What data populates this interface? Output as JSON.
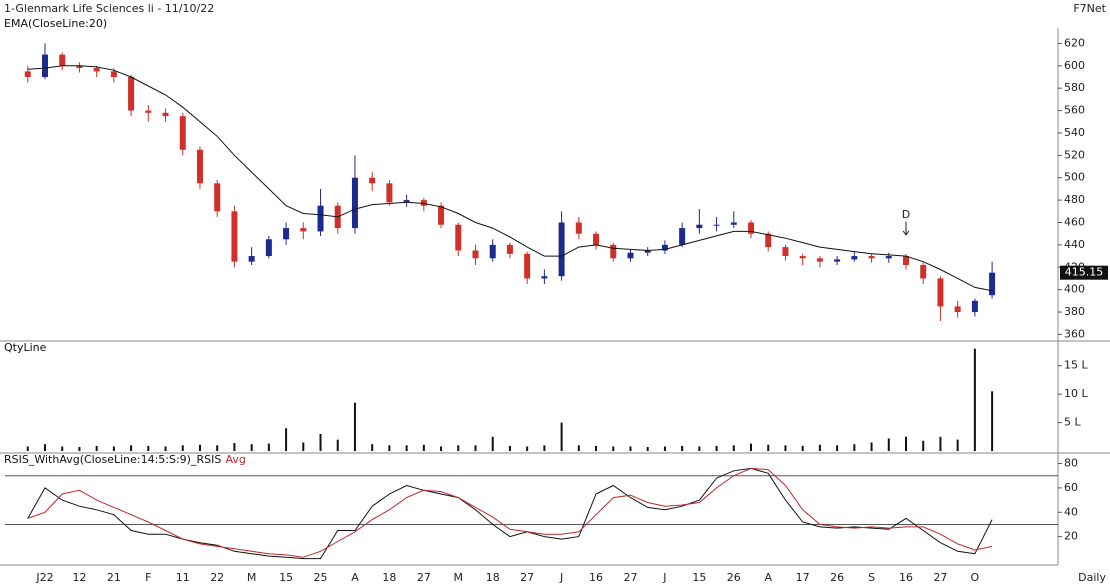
{
  "header": {
    "source": "F7Net",
    "period": "Daily"
  },
  "chart_data": [
    {
      "type": "candlestick",
      "title": "1-Glenmark Life Sciences li - 11/10/22",
      "up_color": "#1f2a8f",
      "down_color": "#d0302a",
      "open": [
        595,
        590,
        610,
        600,
        598,
        595,
        590,
        560,
        558,
        555,
        525,
        495,
        470,
        425,
        430,
        445,
        455,
        452,
        475,
        455,
        500,
        495,
        478,
        480,
        475,
        458,
        435,
        428,
        440,
        432,
        410,
        412,
        460,
        450,
        440,
        428,
        433,
        435,
        440,
        455,
        458,
        458,
        460,
        450,
        438,
        430,
        428,
        425,
        427,
        430,
        428,
        430,
        422,
        410,
        385,
        380,
        395
      ],
      "high": [
        600,
        620,
        612,
        603,
        600,
        598,
        592,
        565,
        562,
        558,
        528,
        498,
        475,
        438,
        448,
        460,
        460,
        490,
        478,
        520,
        505,
        498,
        485,
        482,
        478,
        460,
        440,
        445,
        442,
        434,
        418,
        470,
        465,
        452,
        442,
        436,
        438,
        444,
        460,
        472,
        465,
        470,
        462,
        452,
        440,
        432,
        430,
        430,
        434,
        432,
        433,
        432,
        424,
        412,
        390,
        392,
        425
      ],
      "low": [
        585,
        588,
        596,
        594,
        590,
        585,
        555,
        550,
        550,
        520,
        490,
        465,
        420,
        422,
        428,
        440,
        445,
        448,
        450,
        450,
        488,
        475,
        474,
        470,
        455,
        430,
        422,
        425,
        428,
        405,
        405,
        408,
        445,
        436,
        425,
        425,
        430,
        432,
        438,
        450,
        452,
        455,
        446,
        434,
        426,
        422,
        420,
        422,
        425,
        424,
        424,
        418,
        405,
        372,
        375,
        376,
        392
      ],
      "close": [
        590,
        610,
        600,
        598,
        595,
        590,
        560,
        558,
        555,
        525,
        495,
        470,
        425,
        430,
        445,
        455,
        452,
        475,
        455,
        500,
        495,
        478,
        480,
        475,
        458,
        435,
        428,
        440,
        432,
        410,
        412,
        460,
        450,
        440,
        428,
        433,
        435,
        440,
        455,
        458,
        458,
        460,
        450,
        438,
        430,
        428,
        425,
        427,
        430,
        428,
        430,
        422,
        410,
        385,
        380,
        390,
        415.15
      ],
      "overlays": [
        {
          "name": "EMA(CloseLine:20)",
          "color": "#111111",
          "values": [
            597,
            598,
            600,
            600,
            599,
            596,
            590,
            582,
            574,
            563,
            550,
            537,
            520,
            505,
            490,
            475,
            468,
            467,
            465,
            472,
            476,
            477,
            478,
            477,
            474,
            468,
            460,
            455,
            447,
            438,
            430,
            430,
            438,
            440,
            437,
            436,
            435,
            436,
            440,
            444,
            448,
            452,
            452,
            449,
            446,
            442,
            438,
            436,
            434,
            432,
            431,
            430,
            425,
            418,
            410,
            402,
            399
          ]
        }
      ],
      "annotations": [
        {
          "text": "D",
          "x": 51,
          "y": 440
        }
      ],
      "ylim": [
        355,
        632
      ],
      "yticks": [
        360,
        380,
        400,
        420,
        440,
        460,
        480,
        500,
        520,
        540,
        560,
        580,
        600,
        620
      ]
    },
    {
      "type": "bar",
      "series": [
        {
          "name": "QtyLine",
          "color": "#111111",
          "values": [
            0.8,
            1.2,
            0.8,
            0.7,
            0.9,
            0.8,
            1,
            0.9,
            0.8,
            1,
            1.1,
            1,
            1.4,
            1.2,
            1.3,
            4,
            1.5,
            3,
            2,
            8.5,
            1.2,
            1,
            1,
            1.1,
            0.8,
            1,
            1,
            2.5,
            0.9,
            0.8,
            1,
            5,
            1,
            0.9,
            0.8,
            0.8,
            0.7,
            0.8,
            0.9,
            0.8,
            0.9,
            1,
            1.3,
            1.1,
            1,
            0.9,
            1.1,
            1,
            1.2,
            1.5,
            2.2,
            2.5,
            1.8,
            2.5,
            2,
            18,
            10.5
          ]
        }
      ],
      "ylim": [
        0,
        19
      ],
      "yticks": [
        {
          "value": 5,
          "label": "5 L"
        },
        {
          "value": 10,
          "label": "10 L"
        },
        {
          "value": 15,
          "label": "15 L"
        }
      ]
    },
    {
      "type": "line",
      "categories": [
        null,
        "J22",
        null,
        "12",
        null,
        "21",
        null,
        "F",
        null,
        "11",
        null,
        "22",
        null,
        "M",
        null,
        "15",
        null,
        "25",
        null,
        "A",
        null,
        "18",
        null,
        "27",
        null,
        "M",
        null,
        "18",
        null,
        "27",
        null,
        "J",
        null,
        "16",
        null,
        "27",
        null,
        "J",
        null,
        "15",
        null,
        "26",
        null,
        "A",
        null,
        "17",
        null,
        "26",
        null,
        "S",
        null,
        "16",
        null,
        "27",
        null,
        "O",
        null
      ],
      "series": [
        {
          "name": "RSIS_WithAvg(CloseLine:14:5:S:9)_RSIS",
          "color": "#111111",
          "values": [
            35,
            60,
            50,
            45,
            42,
            38,
            25,
            22,
            22,
            18,
            15,
            13,
            8,
            6,
            4,
            3,
            2,
            2,
            25,
            25,
            45,
            55,
            62,
            58,
            55,
            52,
            42,
            30,
            20,
            24,
            20,
            18,
            20,
            55,
            62,
            52,
            44,
            42,
            45,
            50,
            68,
            74,
            76,
            72,
            50,
            32,
            28,
            27,
            28,
            27,
            26,
            35,
            25,
            15,
            8,
            6,
            34
          ]
        },
        {
          "name": "Avg",
          "color": "#c0282a",
          "values": [
            35,
            40,
            55,
            58,
            50,
            44,
            38,
            32,
            25,
            18,
            14,
            12,
            10,
            8,
            6,
            5,
            3,
            8,
            16,
            24,
            34,
            42,
            52,
            58,
            57,
            52,
            44,
            36,
            26,
            24,
            22,
            22,
            24,
            38,
            52,
            54,
            48,
            45,
            46,
            48,
            60,
            70,
            76,
            75,
            62,
            42,
            30,
            28,
            27,
            28,
            27,
            28,
            28,
            22,
            14,
            9,
            12
          ]
        }
      ],
      "levels": [
        70,
        30
      ],
      "ylim": [
        0,
        87
      ],
      "yticks": [
        20,
        40,
        60,
        80
      ]
    }
  ]
}
